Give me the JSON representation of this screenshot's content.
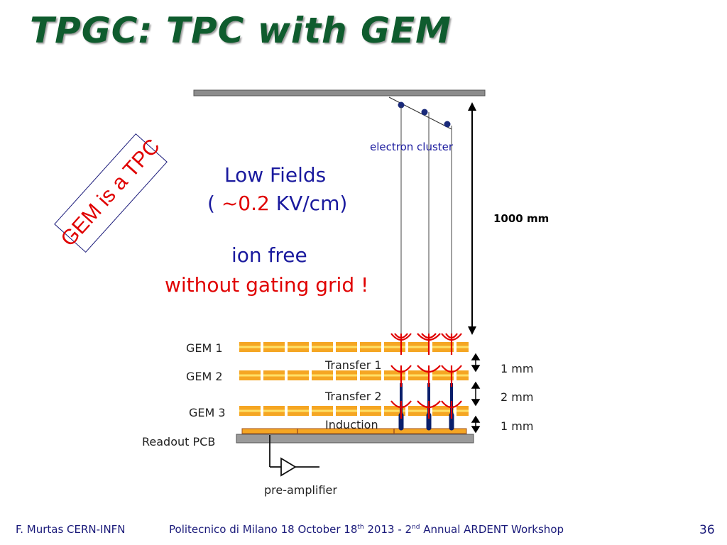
{
  "slide": {
    "title": "TPGC: TPC with GEM",
    "badge": "GEM is a TPC",
    "low_fields": "Low Fields",
    "kv_open": "( ",
    "kv_value": "~0.2",
    "kv_unit": " KV/cm)",
    "ion_free": "ion free",
    "gating": "without gating grid !",
    "slide_number": "36"
  },
  "diagram": {
    "electron_cluster": "electron cluster",
    "drift_length": "1000 mm",
    "gem_labels": [
      "GEM 1",
      "GEM 2",
      "GEM 3"
    ],
    "gap_labels": [
      "Transfer 1",
      "Transfer 2",
      "Induction"
    ],
    "gap_sizes": [
      "1 mm",
      "2 mm",
      "1 mm"
    ],
    "readout_pcb": "Readout PCB",
    "pre_amplifier": "pre-amplifier"
  },
  "footer": {
    "author": "F. Murtas CERN-INFN",
    "venue_pre": "Politecnico di Milano 18 October 18",
    "sup_th": "th",
    "venue_mid": " 2013 - 2",
    "sup_nd": "nd",
    "venue_post": " Annual ARDENT Workshop"
  },
  "colors": {
    "title": "#0f5c2e",
    "text_blue": "#1a1a9e",
    "highlight_red": "#e00000",
    "gem_foil": "#f5a623",
    "gem_inner": "#ffe066",
    "avalanche": "#e00000",
    "track": "#0a1f6b"
  }
}
